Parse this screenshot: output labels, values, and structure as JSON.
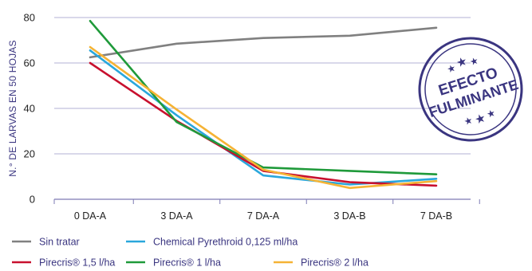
{
  "chart_data": {
    "type": "line",
    "title": "",
    "xlabel": "",
    "ylabel": "N.° DE LARVAS EN 50 HOJAS",
    "categories": [
      "0 DA-A",
      "3 DA-A",
      "7 DA-A",
      "3 DA-B",
      "7 DA-B"
    ],
    "ylim": [
      0,
      80
    ],
    "yticks": [
      0,
      20,
      40,
      60,
      80
    ],
    "grid": "horizontal",
    "legend_position": "bottom",
    "series": [
      {
        "name": "Sin tratar",
        "color": "#808080",
        "values": [
          62.5,
          68.5,
          71,
          72,
          75.5
        ]
      },
      {
        "name": "Chemical Pyrethroid 0,125 ml/ha",
        "color": "#2aa7dc",
        "values": [
          65.5,
          37,
          10.5,
          6.5,
          9
        ]
      },
      {
        "name": "Pirecris® 1,5 l/ha",
        "color": "#c8102e",
        "values": [
          60,
          34.5,
          12.5,
          7.5,
          6
        ]
      },
      {
        "name": "Pirecris® 1 l/ha",
        "color": "#1f9a3a",
        "values": [
          78.5,
          34,
          14,
          12.5,
          11
        ]
      },
      {
        "name": "Pirecris® 2 l/ha",
        "color": "#f5b335",
        "values": [
          67,
          39.5,
          13,
          5,
          8
        ]
      }
    ]
  },
  "stamp": {
    "line1": "EFECTO",
    "line2": "FULMINANTE",
    "color": "#3a3580"
  }
}
